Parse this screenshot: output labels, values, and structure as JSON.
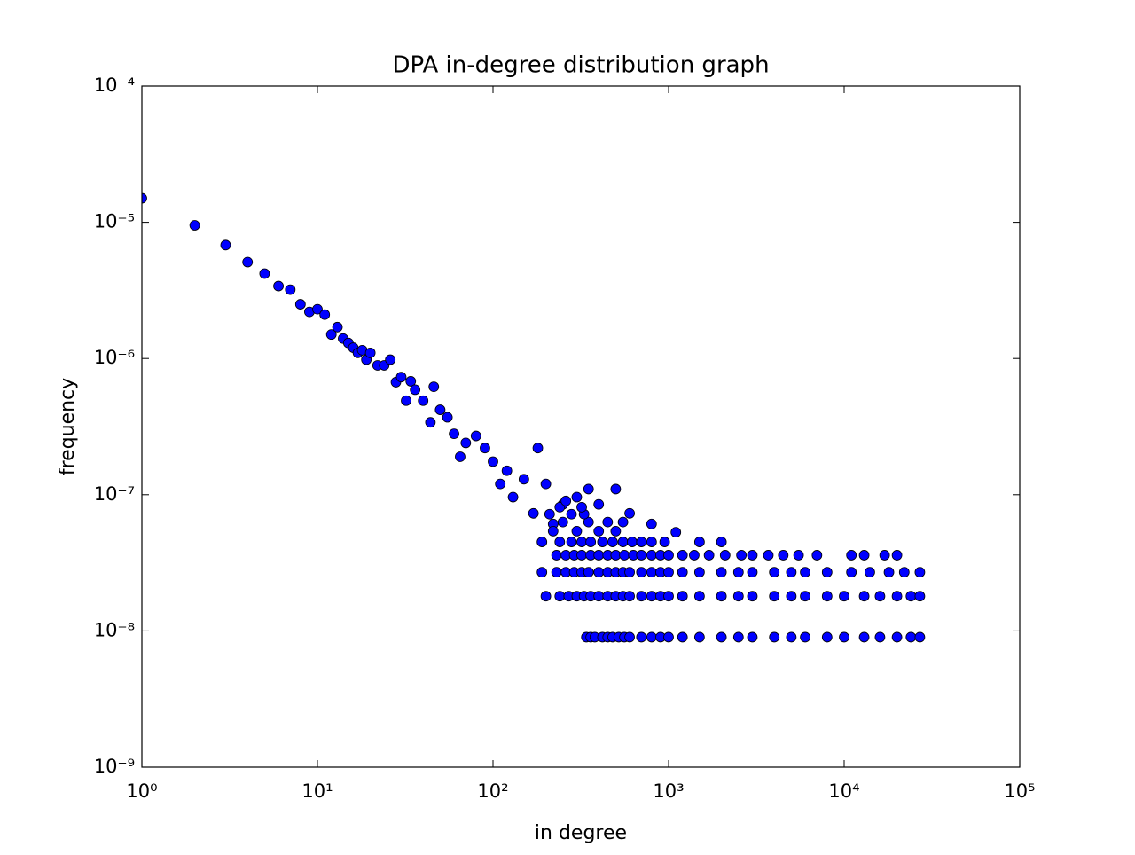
{
  "chart_data": {
    "type": "scatter",
    "title": "DPA in-degree distribution graph",
    "x_label": "in degree",
    "y_label": "frequency",
    "xscale": "log",
    "yscale": "log",
    "color": "#0000ff",
    "edge_color": "#000000",
    "xlim": [
      1,
      100000
    ],
    "ylim": [
      1e-09,
      0.0001
    ],
    "xticks": [
      {
        "value": 1,
        "label": "10⁰"
      },
      {
        "value": 10,
        "label": "10¹"
      },
      {
        "value": 100,
        "label": "10²"
      },
      {
        "value": 1000,
        "label": "10³"
      },
      {
        "value": 10000,
        "label": "10⁴"
      },
      {
        "value": 100000,
        "label": "10⁵"
      }
    ],
    "yticks": [
      {
        "value": 1e-09,
        "label": "10⁻⁹"
      },
      {
        "value": 1e-08,
        "label": "10⁻⁸"
      },
      {
        "value": 1e-07,
        "label": "10⁻⁷"
      },
      {
        "value": 1e-06,
        "label": "10⁻⁶"
      },
      {
        "value": 1e-05,
        "label": "10⁻⁵"
      },
      {
        "value": 0.0001,
        "label": "10⁻⁴"
      }
    ],
    "x": [
      1,
      2,
      3,
      4,
      5,
      6,
      7,
      8,
      9,
      10,
      11,
      12,
      13,
      14,
      15,
      16,
      17,
      18,
      19,
      20,
      22,
      24,
      26,
      28,
      30,
      32,
      34,
      36,
      40,
      44,
      46,
      50,
      55,
      60,
      65,
      70,
      80,
      90,
      100,
      110,
      120,
      130,
      150,
      170,
      180,
      200,
      220,
      250,
      300,
      350,
      400,
      500,
      600,
      800,
      1100,
      340,
      360,
      380,
      420,
      450,
      480,
      520,
      560,
      600,
      700,
      800,
      900,
      1000,
      1200,
      1500,
      2000,
      2500,
      3000,
      4000,
      5000,
      6000,
      8000,
      10000,
      13000,
      16000,
      20000,
      24000,
      27000,
      200,
      240,
      270,
      300,
      330,
      360,
      400,
      450,
      500,
      550,
      600,
      700,
      800,
      900,
      1000,
      1200,
      1500,
      2000,
      2500,
      3000,
      4000,
      5000,
      6000,
      8000,
      10000,
      13000,
      16000,
      20000,
      24000,
      27000,
      190,
      230,
      260,
      290,
      320,
      350,
      400,
      450,
      500,
      550,
      600,
      700,
      800,
      900,
      1000,
      1200,
      1500,
      2000,
      2500,
      3000,
      4000,
      5000,
      6000,
      8000,
      11000,
      14000,
      18000,
      22000,
      27000,
      230,
      260,
      290,
      320,
      360,
      400,
      450,
      500,
      560,
      630,
      700,
      800,
      900,
      1000,
      1200,
      1400,
      1700,
      2100,
      2600,
      3000,
      3700,
      4500,
      5500,
      7000,
      11000,
      13000,
      17000,
      20000,
      190,
      240,
      280,
      320,
      360,
      420,
      480,
      550,
      620,
      700,
      800,
      950,
      1500,
      2000,
      220,
      300,
      400,
      500,
      250,
      350,
      450,
      550,
      210,
      280,
      330,
      240,
      320,
      260
    ],
    "y": [
      1.5e-05,
      9.5e-06,
      6.8e-06,
      5.1e-06,
      4.2e-06,
      3.4e-06,
      3.2e-06,
      2.5e-06,
      2.2e-06,
      2.3e-06,
      2.1e-06,
      1.5e-06,
      1.7e-06,
      1.4e-06,
      1.3e-06,
      1.2e-06,
      1.1e-06,
      1.15e-06,
      9.8e-07,
      1.1e-06,
      8.9e-07,
      8.9e-07,
      9.8e-07,
      6.7e-07,
      7.3e-07,
      4.9e-07,
      6.8e-07,
      5.9e-07,
      4.9e-07,
      3.4e-07,
      6.2e-07,
      4.2e-07,
      3.7e-07,
      2.8e-07,
      1.9e-07,
      2.4e-07,
      2.7e-07,
      2.2e-07,
      1.75e-07,
      1.2e-07,
      1.5e-07,
      9.6e-08,
      1.3e-07,
      7.3e-08,
      2.2e-07,
      1.2e-07,
      6.1e-08,
      8.5e-08,
      9.6e-08,
      1.1e-07,
      8.5e-08,
      1.1e-07,
      7.3e-08,
      6.1e-08,
      5.3e-08,
      9e-09,
      9e-09,
      9e-09,
      9e-09,
      9e-09,
      9e-09,
      9e-09,
      9e-09,
      9e-09,
      9e-09,
      9e-09,
      9e-09,
      9e-09,
      9e-09,
      9e-09,
      9e-09,
      9e-09,
      9e-09,
      9e-09,
      9e-09,
      9e-09,
      9e-09,
      9e-09,
      9e-09,
      9e-09,
      9e-09,
      9e-09,
      9e-09,
      1.8e-08,
      1.8e-08,
      1.8e-08,
      1.8e-08,
      1.8e-08,
      1.8e-08,
      1.8e-08,
      1.8e-08,
      1.8e-08,
      1.8e-08,
      1.8e-08,
      1.8e-08,
      1.8e-08,
      1.8e-08,
      1.8e-08,
      1.8e-08,
      1.8e-08,
      1.8e-08,
      1.8e-08,
      1.8e-08,
      1.8e-08,
      1.8e-08,
      1.8e-08,
      1.8e-08,
      1.8e-08,
      1.8e-08,
      1.8e-08,
      1.8e-08,
      1.8e-08,
      1.8e-08,
      2.7e-08,
      2.7e-08,
      2.7e-08,
      2.7e-08,
      2.7e-08,
      2.7e-08,
      2.7e-08,
      2.7e-08,
      2.7e-08,
      2.7e-08,
      2.7e-08,
      2.7e-08,
      2.7e-08,
      2.7e-08,
      2.7e-08,
      2.7e-08,
      2.7e-08,
      2.7e-08,
      2.7e-08,
      2.7e-08,
      2.7e-08,
      2.7e-08,
      2.7e-08,
      2.7e-08,
      2.7e-08,
      2.7e-08,
      2.7e-08,
      2.7e-08,
      2.7e-08,
      3.6e-08,
      3.6e-08,
      3.6e-08,
      3.6e-08,
      3.6e-08,
      3.6e-08,
      3.6e-08,
      3.6e-08,
      3.6e-08,
      3.6e-08,
      3.6e-08,
      3.6e-08,
      3.6e-08,
      3.6e-08,
      3.6e-08,
      3.6e-08,
      3.6e-08,
      3.6e-08,
      3.6e-08,
      3.6e-08,
      3.6e-08,
      3.6e-08,
      3.6e-08,
      3.6e-08,
      3.6e-08,
      3.6e-08,
      3.6e-08,
      3.6e-08,
      4.5e-08,
      4.5e-08,
      4.5e-08,
      4.5e-08,
      4.5e-08,
      4.5e-08,
      4.5e-08,
      4.5e-08,
      4.5e-08,
      4.5e-08,
      4.5e-08,
      4.5e-08,
      4.5e-08,
      4.5e-08,
      5.4e-08,
      5.4e-08,
      5.4e-08,
      5.4e-08,
      6.3e-08,
      6.3e-08,
      6.3e-08,
      6.3e-08,
      7.2e-08,
      7.2e-08,
      7.2e-08,
      8.1e-08,
      8.1e-08,
      9e-08
    ]
  }
}
